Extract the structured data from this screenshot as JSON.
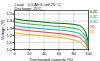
{
  "chart_data": {
    "type": "line",
    "annotations": [
      "Load    0.5 Ah 6 cell 25° C",
      "Discharge: 25°C"
    ],
    "xlabel": "Discharged capacity (%)",
    "ylabel": "Voltage (V)",
    "xlim": [
      0,
      100
    ],
    "ylim": [
      1.0,
      1.55
    ],
    "xticks": [
      0,
      20,
      40,
      60,
      80,
      100
    ],
    "yticks": [
      {
        "value": 1.0,
        "label": "1.0"
      },
      {
        "value": 1.1,
        "label": "1.1"
      },
      {
        "value": 1.2,
        "label": "1.2"
      },
      {
        "value": 1.3,
        "label": "1.3"
      },
      {
        "value": 1.4,
        "label": "1.4"
      },
      {
        "value": 1.5,
        "label": "1.5"
      }
    ],
    "grid": true,
    "x": [
      0,
      2,
      5,
      10,
      20,
      30,
      40,
      50,
      60,
      70,
      80,
      88,
      92,
      96,
      100
    ],
    "series": [
      {
        "name": "0.1C",
        "color": "#006600",
        "values": [
          1.435,
          1.43,
          1.425,
          1.415,
          1.405,
          1.395,
          1.385,
          1.375,
          1.37,
          1.365,
          1.355,
          1.34,
          1.31,
          1.25,
          1.1
        ]
      },
      {
        "name": "0.2C",
        "color": "#44aa44",
        "values": [
          1.39,
          1.385,
          1.38,
          1.37,
          1.36,
          1.35,
          1.34,
          1.33,
          1.325,
          1.315,
          1.3,
          1.28,
          1.245,
          1.185,
          1.04
        ]
      },
      {
        "name": "0.5C",
        "color": "#00bbbb",
        "values": [
          1.34,
          1.335,
          1.33,
          1.32,
          1.31,
          1.3,
          1.29,
          1.28,
          1.275,
          1.265,
          1.248,
          1.225,
          1.19,
          1.135,
          1.02
        ]
      },
      {
        "name": "1C",
        "color": "#ff3333",
        "values": [
          1.295,
          1.29,
          1.285,
          1.275,
          1.265,
          1.255,
          1.245,
          1.235,
          1.225,
          1.215,
          1.195,
          1.17,
          1.135,
          1.085,
          1.01
        ]
      },
      {
        "name": "2C",
        "color": "#ffaa00",
        "values": [
          1.24,
          1.235,
          1.23,
          1.22,
          1.21,
          1.2,
          1.19,
          1.18,
          1.17,
          1.158,
          1.135,
          1.108,
          1.075,
          1.03,
          1.0
        ]
      }
    ]
  }
}
